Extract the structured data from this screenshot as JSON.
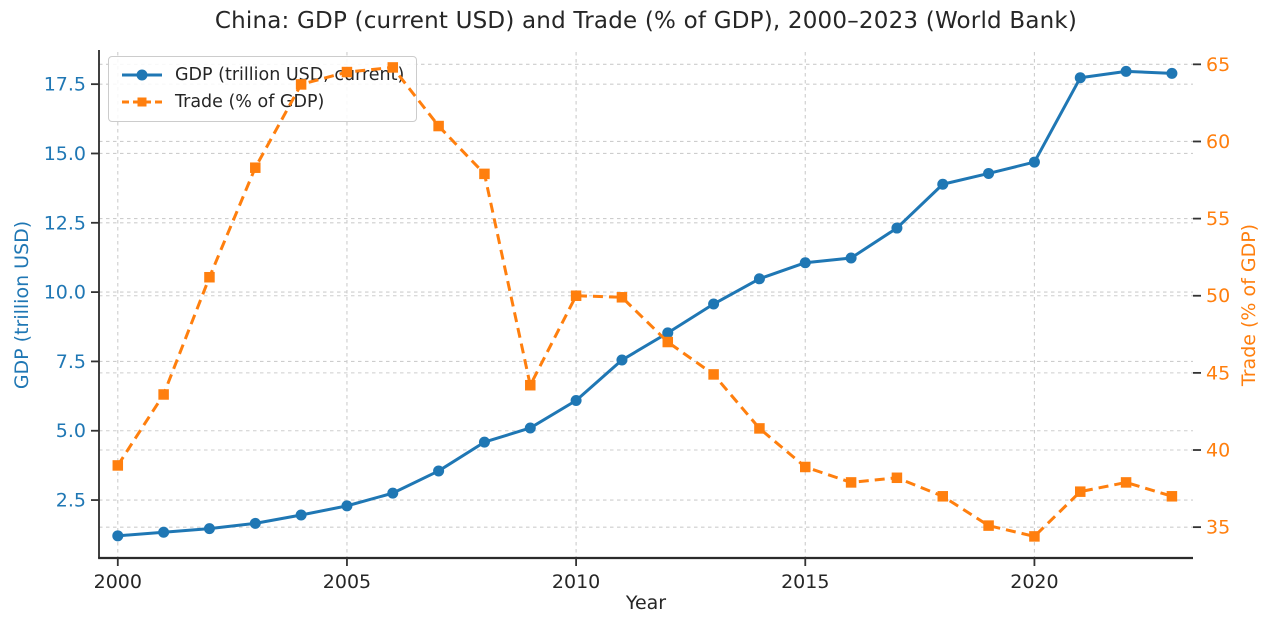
{
  "chart_data": {
    "type": "line",
    "title": "China: GDP (current USD) and Trade (% of GDP), 2000–2023 (World Bank)",
    "xlabel": "Year",
    "x": [
      2000,
      2001,
      2002,
      2003,
      2004,
      2005,
      2006,
      2007,
      2008,
      2009,
      2010,
      2011,
      2012,
      2013,
      2014,
      2015,
      2016,
      2017,
      2018,
      2019,
      2020,
      2021,
      2022,
      2023
    ],
    "x_ticks": [
      2000,
      2005,
      2010,
      2015,
      2020
    ],
    "x_tick_labels": [
      "2000",
      "2005",
      "2010",
      "2015",
      "2020"
    ],
    "x_range": [
      1999.59,
      2023.46
    ],
    "grid": true,
    "legend_position": "upper left",
    "left_axis": {
      "label": "GDP (trillion USD)",
      "color": "#1f77b4",
      "ticks": [
        2.5,
        5.0,
        7.5,
        10.0,
        12.5,
        15.0,
        17.5
      ],
      "tick_labels": [
        "2.5",
        "5.0",
        "7.5",
        "10.0",
        "12.5",
        "15.0",
        "17.5"
      ],
      "range": [
        0.41,
        18.66
      ]
    },
    "right_axis": {
      "label": "Trade (% of GDP)",
      "color": "#ff7f0e",
      "ticks": [
        35,
        40,
        45,
        50,
        55,
        60,
        65
      ],
      "tick_labels": [
        "35",
        "40",
        "45",
        "50",
        "55",
        "60",
        "65"
      ],
      "range": [
        33.0,
        65.8
      ]
    },
    "series": [
      {
        "name": "GDP (trillion USD, current)",
        "axis": "left",
        "color": "#1f77b4",
        "line_style": "solid",
        "marker": "circle",
        "values": [
          1.21,
          1.34,
          1.47,
          1.66,
          1.96,
          2.29,
          2.75,
          3.55,
          4.59,
          5.1,
          6.09,
          7.55,
          8.53,
          9.57,
          10.48,
          11.06,
          11.23,
          12.31,
          13.89,
          14.28,
          14.69,
          17.73,
          17.96,
          17.89
        ]
      },
      {
        "name": "Trade (% of GDP)",
        "axis": "right",
        "color": "#ff7f0e",
        "line_style": "dashed",
        "marker": "square",
        "values": [
          39.0,
          43.6,
          51.2,
          58.3,
          63.7,
          64.5,
          64.8,
          61.0,
          57.9,
          44.2,
          50.0,
          49.9,
          47.0,
          44.9,
          41.4,
          38.9,
          37.9,
          38.2,
          37.0,
          35.1,
          34.4,
          37.3,
          37.9,
          37.0
        ]
      }
    ],
    "axis_text_color": "#262626"
  }
}
